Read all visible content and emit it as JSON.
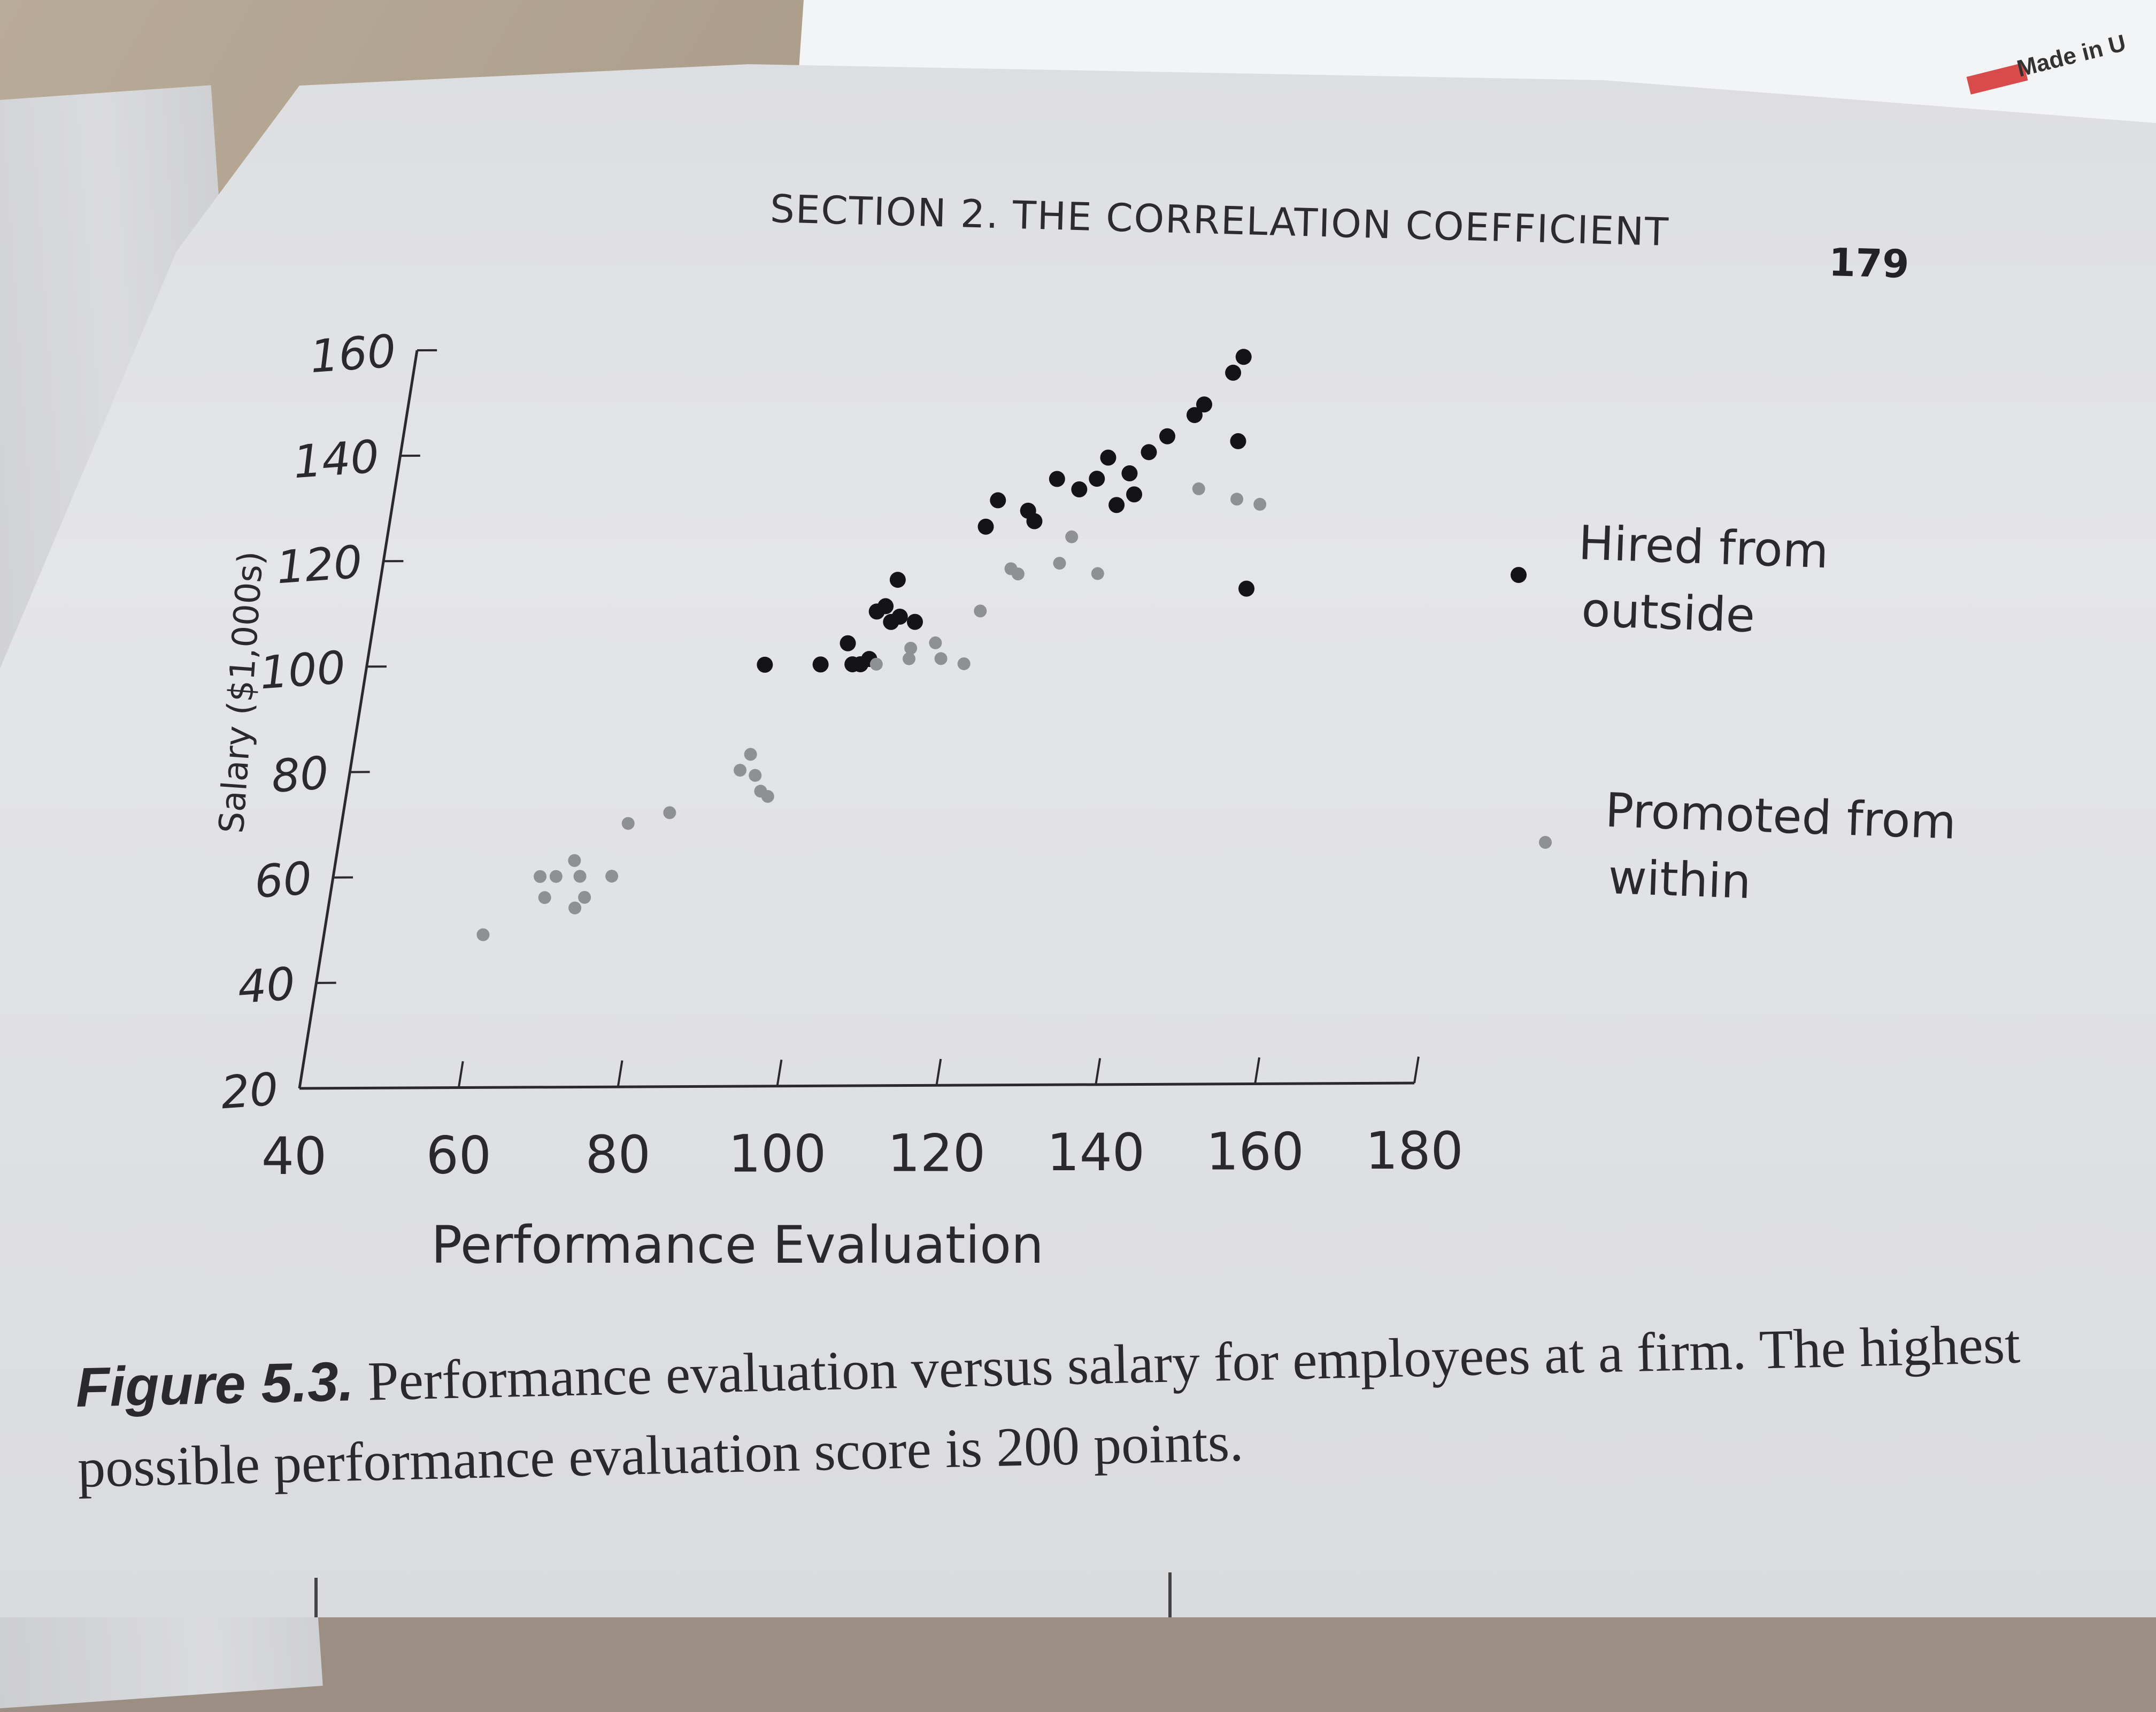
{
  "header": {
    "section_title": "SECTION 2.  THE CORRELATION COEFFICIENT",
    "page_number": "179"
  },
  "corner_label": "Made in U",
  "caption": {
    "label": "Figure 5.3.",
    "text": " Performance evaluation versus salary for employees at a firm. The highest possible performance evaluation score is 200 points."
  },
  "colors": {
    "hired": "#141416",
    "promoted": "#8f9094",
    "axis": "#2a2a2c"
  },
  "chart_data": {
    "type": "scatter",
    "title": "",
    "xlabel": "Performance Evaluation",
    "ylabel": "Salary ($1,000s)",
    "xlim": [
      40,
      180
    ],
    "ylim": [
      20,
      160
    ],
    "x_ticks": [
      40,
      60,
      80,
      100,
      120,
      140,
      160,
      180
    ],
    "y_ticks": [
      20,
      40,
      60,
      80,
      100,
      120,
      140,
      160
    ],
    "grid": false,
    "legend_position": "right",
    "series": [
      {
        "name": "Hired from outside",
        "color": "#141416",
        "points": [
          [
            90,
            100
          ],
          [
            97,
            100
          ],
          [
            101,
            100
          ],
          [
            102,
            100
          ],
          [
            103,
            101
          ],
          [
            100,
            104
          ],
          [
            103,
            110
          ],
          [
            105,
            108
          ],
          [
            106,
            109
          ],
          [
            108,
            108
          ],
          [
            104,
            111
          ],
          [
            105,
            116
          ],
          [
            115,
            126
          ],
          [
            116,
            131
          ],
          [
            120,
            129
          ],
          [
            121,
            127
          ],
          [
            126,
            133
          ],
          [
            128,
            135
          ],
          [
            123,
            135
          ],
          [
            131,
            130
          ],
          [
            133,
            132
          ],
          [
            132,
            136
          ],
          [
            134,
            140
          ],
          [
            136,
            143
          ],
          [
            129,
            139
          ],
          [
            139,
            147
          ],
          [
            140,
            149
          ],
          [
            145,
            142
          ],
          [
            143,
            155
          ],
          [
            144,
            158
          ],
          [
            149,
            114
          ]
        ]
      },
      {
        "name": "Promoted from within",
        "color": "#8f9094",
        "points": [
          [
            60,
            49
          ],
          [
            67,
            56
          ],
          [
            66,
            60
          ],
          [
            68,
            60
          ],
          [
            71,
            54
          ],
          [
            72,
            56
          ],
          [
            71,
            60
          ],
          [
            70,
            63
          ],
          [
            75,
            60
          ],
          [
            76,
            70
          ],
          [
            81,
            72
          ],
          [
            89,
            80
          ],
          [
            90,
            83
          ],
          [
            91,
            79
          ],
          [
            92,
            76
          ],
          [
            93,
            75
          ],
          [
            104,
            100
          ],
          [
            108,
            101
          ],
          [
            108,
            103
          ],
          [
            111,
            104
          ],
          [
            112,
            101
          ],
          [
            115,
            100
          ],
          [
            116,
            110
          ],
          [
            120,
            117
          ],
          [
            119,
            118
          ],
          [
            125,
            119
          ],
          [
            126,
            124
          ],
          [
            130,
            117
          ],
          [
            141,
            133
          ],
          [
            146,
            131
          ],
          [
            149,
            130
          ]
        ]
      }
    ]
  }
}
